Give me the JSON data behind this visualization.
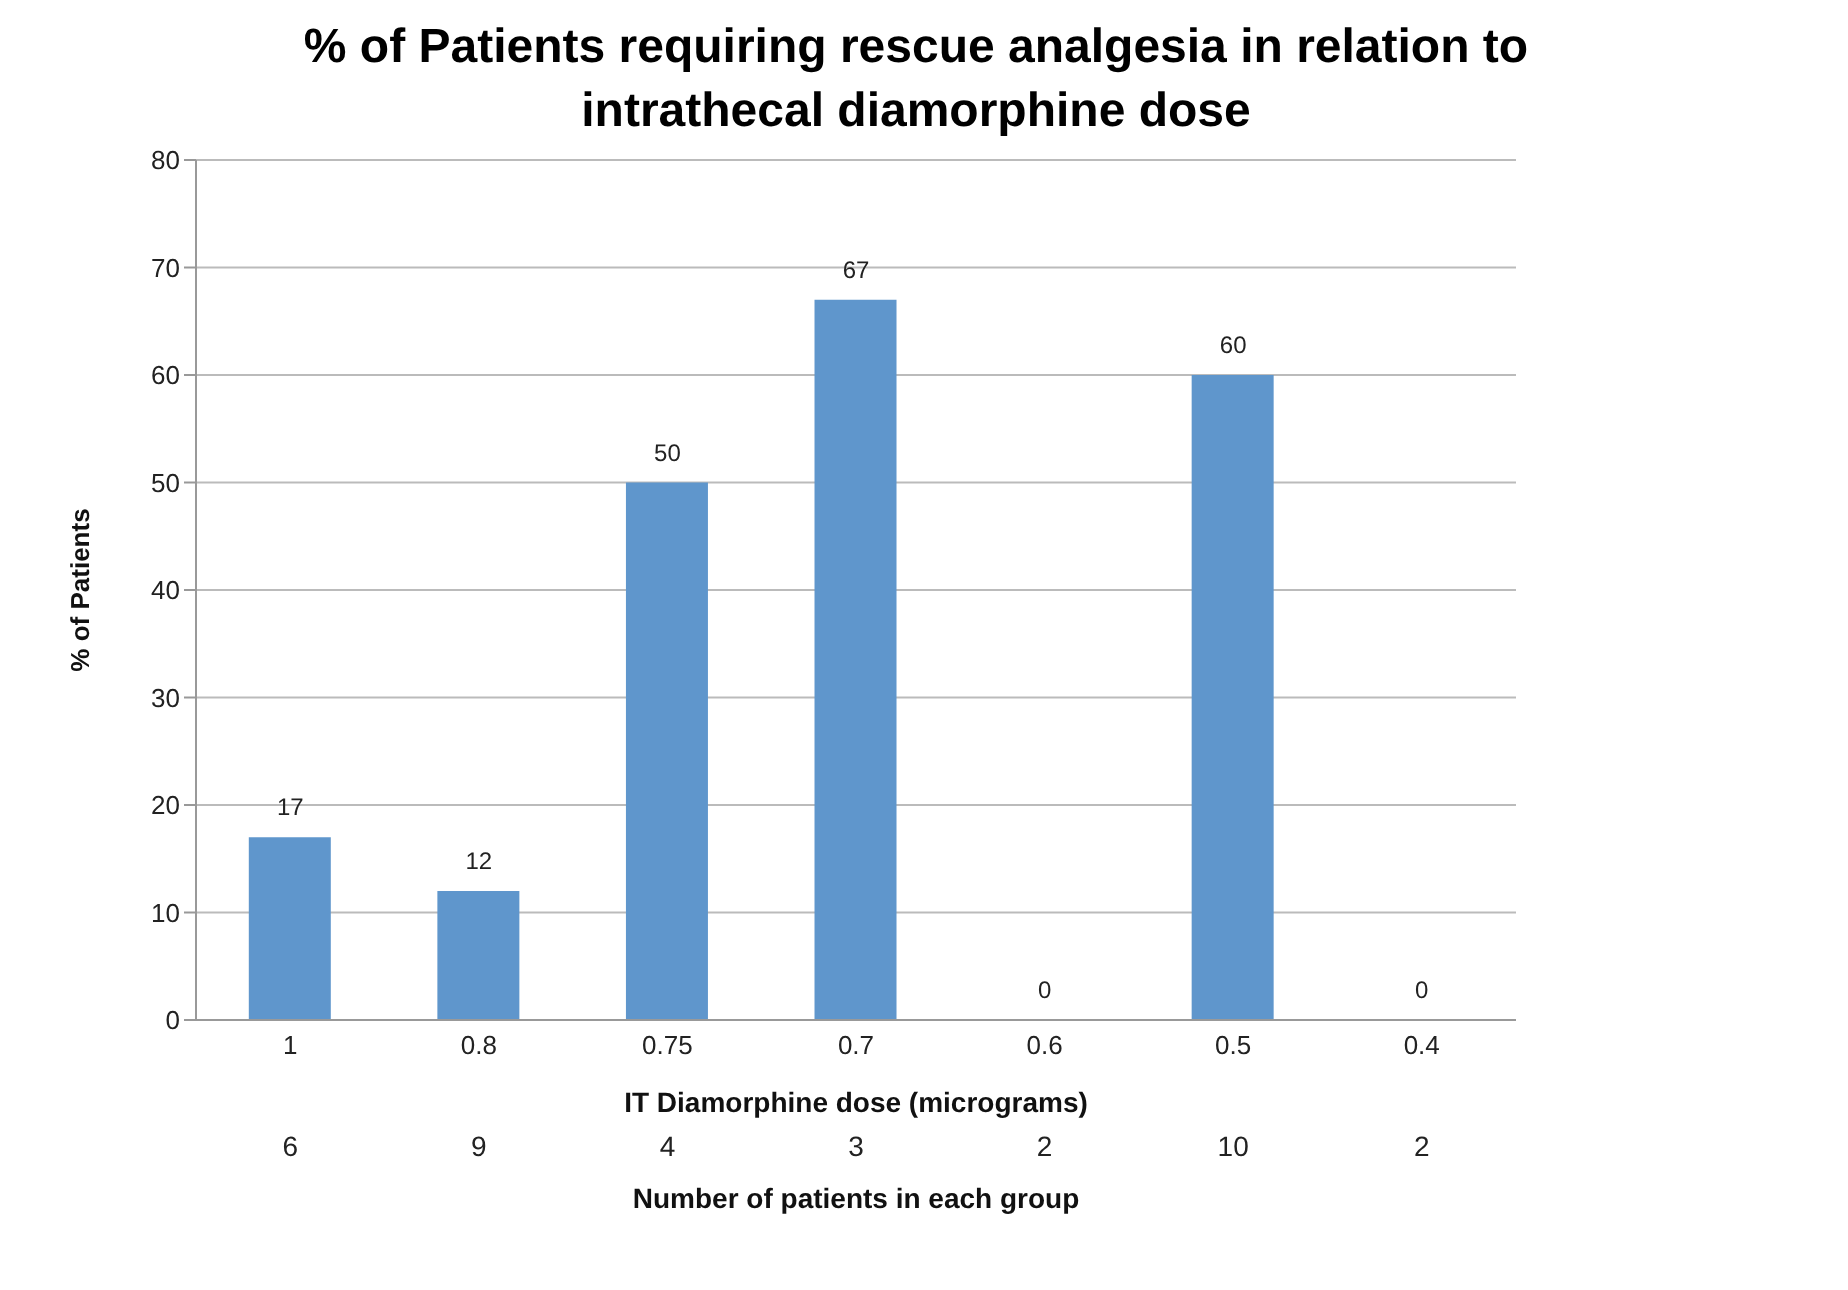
{
  "chart_data": {
    "type": "bar",
    "title": "% of Patients requiring rescue analgesia in relation to intrathecal diamorphine dose",
    "xlabel": "IT Diamorphine dose (micrograms)",
    "ylabel": "% of Patients",
    "categories": [
      "1",
      "0.8",
      "0.75",
      "0.7",
      "0.6",
      "0.5",
      "0.4"
    ],
    "values": [
      17,
      12,
      50,
      67,
      0,
      60,
      0
    ],
    "color": "#5f96cc",
    "ylim": [
      0,
      80
    ],
    "yticks": [
      0,
      10,
      20,
      30,
      40,
      50,
      60,
      70,
      80
    ],
    "grid": "y",
    "data_labels": true,
    "legend": false,
    "annotations": [
      "6",
      "9",
      "4",
      "3",
      "2",
      "10",
      "2",
      "Number of patients in each group"
    ]
  }
}
